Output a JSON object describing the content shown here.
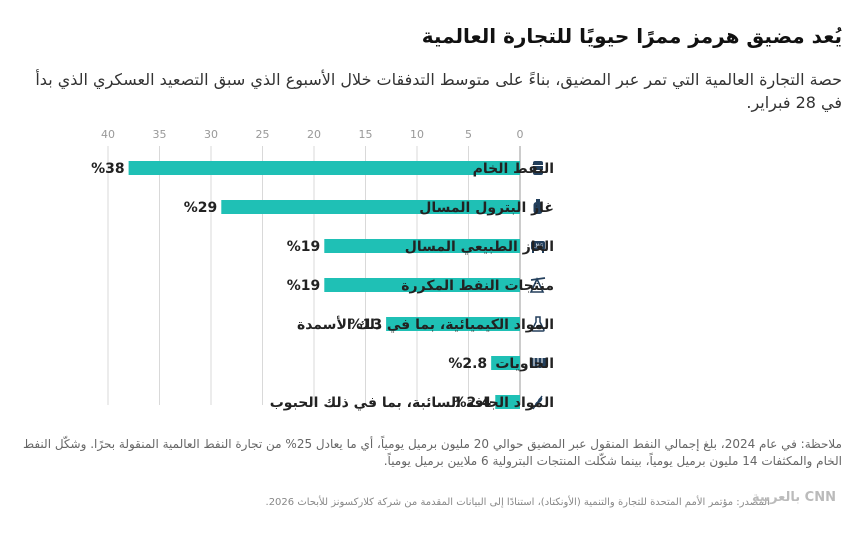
{
  "title": "يُعد مضيق هرمز ممرًا حيويًا للتجارة العالمية",
  "subtitle": "حصة التجارة العالمية التي تمر عبر المضيق، بناءً على متوسط التدفقات خلال الأسبوع الذي سبق التصعيد العسكري الذي بدأ في 28 فبراير.",
  "note": "ملاحظة: في عام 2024، بلغ إجمالي النفط المنقول عبر المضيق حوالي 20 مليون برميل يومياً، أي ما يعادل 25% من تجارة النفط العالمية المنقولة بحرًا. وشكّل النفط الخام والمكثفات 14 مليون برميل يومياً، بينما شكّلت المنتجات البترولية 6 ملايين برميل يومياً.",
  "source": "المصدر: مؤتمر الأمم المتحدة للتجارة والتنمية (الأونكتاد)، استنادًا إلى البيانات المقدمة من شركة كلاركسونز للأبحاث 2026.",
  "logo": "CNN بالعربية",
  "colors": {
    "bar": "#1fc0b5",
    "text": "#222222",
    "grid": "#d9d9d9",
    "icon": "#233f5c"
  },
  "chart_data": {
    "type": "bar",
    "orientation": "horizontal",
    "x_direction": "right-to-left",
    "xlim": [
      0,
      40
    ],
    "xticks": [
      0,
      5,
      10,
      15,
      20,
      25,
      30,
      35,
      40
    ],
    "grid": true,
    "categories": [
      "النفط الخام",
      "غاز البترول المسال",
      "الغاز الطبيعي المسال",
      "منتجات النفط المكررة",
      "المواد الكيميائية، بما في ذلك الأسمدة",
      "الحاويات",
      "المواد الجافة السائبة، بما في ذلك الحبوب"
    ],
    "values": [
      38,
      29,
      19,
      19,
      13,
      2.8,
      2.4
    ],
    "value_labels": [
      "%38",
      "%29",
      "%19",
      "%19",
      "%13",
      "%2.8",
      "%2.4"
    ],
    "icons": [
      "barrel-icon",
      "gas-cylinder-icon",
      "lng-tank-icon",
      "oil-pump-icon",
      "chemical-flask-icon",
      "container-icon",
      "grain-icon"
    ]
  }
}
